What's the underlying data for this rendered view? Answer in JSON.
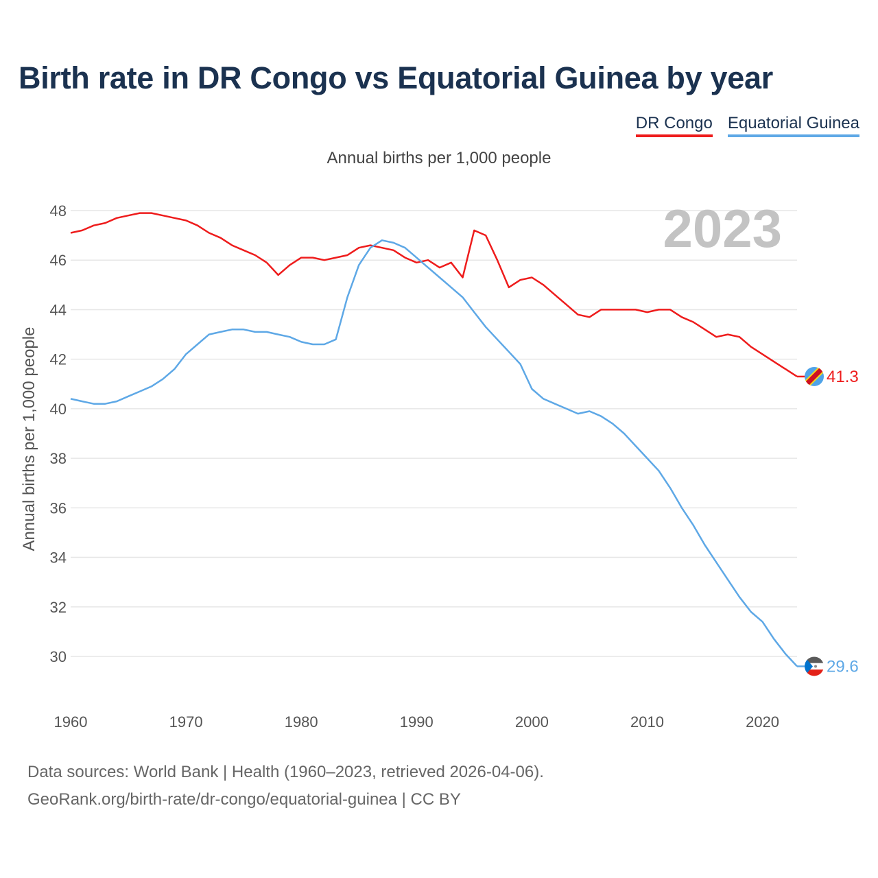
{
  "title": "Birth rate in DR Congo vs Equatorial Guinea by year",
  "legend": [
    {
      "name": "DR Congo",
      "color": "#ee1c1c"
    },
    {
      "name": "Equatorial Guinea",
      "color": "#5ea8e6"
    }
  ],
  "subtitle": "Annual births per 1,000 people",
  "year_label": "2023",
  "source": {
    "line1": "Data sources: World Bank | Health (1960–2023, retrieved 2026-04-06).",
    "line2": "GeoRank.org/birth-rate/dr-congo/equatorial-guinea | CC BY"
  },
  "chart_data": {
    "type": "line",
    "title": "Birth rate in DR Congo vs Equatorial Guinea by year",
    "xlabel": "",
    "ylabel": "Annual births per 1,000 people",
    "xlim": [
      1960,
      2023
    ],
    "ylim": [
      28.5,
      48.5
    ],
    "xticks": [
      1960,
      1970,
      1980,
      1990,
      2000,
      2010,
      2020
    ],
    "yticks": [
      30,
      32,
      34,
      36,
      38,
      40,
      42,
      44,
      46,
      48
    ],
    "grid": true,
    "legend_position": "top-right",
    "x": [
      1960,
      1961,
      1962,
      1963,
      1964,
      1965,
      1966,
      1967,
      1968,
      1969,
      1970,
      1971,
      1972,
      1973,
      1974,
      1975,
      1976,
      1977,
      1978,
      1979,
      1980,
      1981,
      1982,
      1983,
      1984,
      1985,
      1986,
      1987,
      1988,
      1989,
      1990,
      1991,
      1992,
      1993,
      1994,
      1995,
      1996,
      1997,
      1998,
      1999,
      2000,
      2001,
      2002,
      2003,
      2004,
      2005,
      2006,
      2007,
      2008,
      2009,
      2010,
      2011,
      2012,
      2013,
      2014,
      2015,
      2016,
      2017,
      2018,
      2019,
      2020,
      2021,
      2022,
      2023
    ],
    "series": [
      {
        "name": "DR Congo",
        "color": "#ee1c1c",
        "end_value": "41.3",
        "values": [
          47.1,
          47.2,
          47.4,
          47.5,
          47.7,
          47.8,
          47.9,
          47.9,
          47.8,
          47.7,
          47.6,
          47.4,
          47.1,
          46.9,
          46.6,
          46.4,
          46.2,
          45.9,
          45.4,
          45.8,
          46.1,
          46.1,
          46.0,
          46.1,
          46.2,
          46.5,
          46.6,
          46.5,
          46.4,
          46.1,
          45.9,
          46.0,
          45.7,
          45.9,
          45.3,
          47.2,
          47.0,
          46.0,
          44.9,
          45.2,
          45.3,
          45.0,
          44.6,
          44.2,
          43.8,
          43.7,
          44.0,
          44.0,
          44.0,
          44.0,
          43.9,
          44.0,
          44.0,
          43.7,
          43.5,
          43.2,
          42.9,
          43.0,
          42.9,
          42.5,
          42.2,
          41.9,
          41.6,
          41.3
        ]
      },
      {
        "name": "Equatorial Guinea",
        "color": "#5ea8e6",
        "end_value": "29.6",
        "values": [
          40.4,
          40.3,
          40.2,
          40.2,
          40.3,
          40.5,
          40.7,
          40.9,
          41.2,
          41.6,
          42.2,
          42.6,
          43.0,
          43.1,
          43.2,
          43.2,
          43.1,
          43.1,
          43.0,
          42.9,
          42.7,
          42.6,
          42.6,
          42.8,
          44.5,
          45.8,
          46.5,
          46.8,
          46.7,
          46.5,
          46.1,
          45.7,
          45.3,
          44.9,
          44.5,
          43.9,
          43.3,
          42.8,
          42.3,
          41.8,
          40.8,
          40.4,
          40.2,
          40.0,
          39.8,
          39.9,
          39.7,
          39.4,
          39.0,
          38.5,
          38.0,
          37.5,
          36.8,
          36.0,
          35.3,
          34.5,
          33.8,
          33.1,
          32.4,
          31.8,
          31.4,
          30.7,
          30.1,
          29.6
        ]
      }
    ]
  }
}
